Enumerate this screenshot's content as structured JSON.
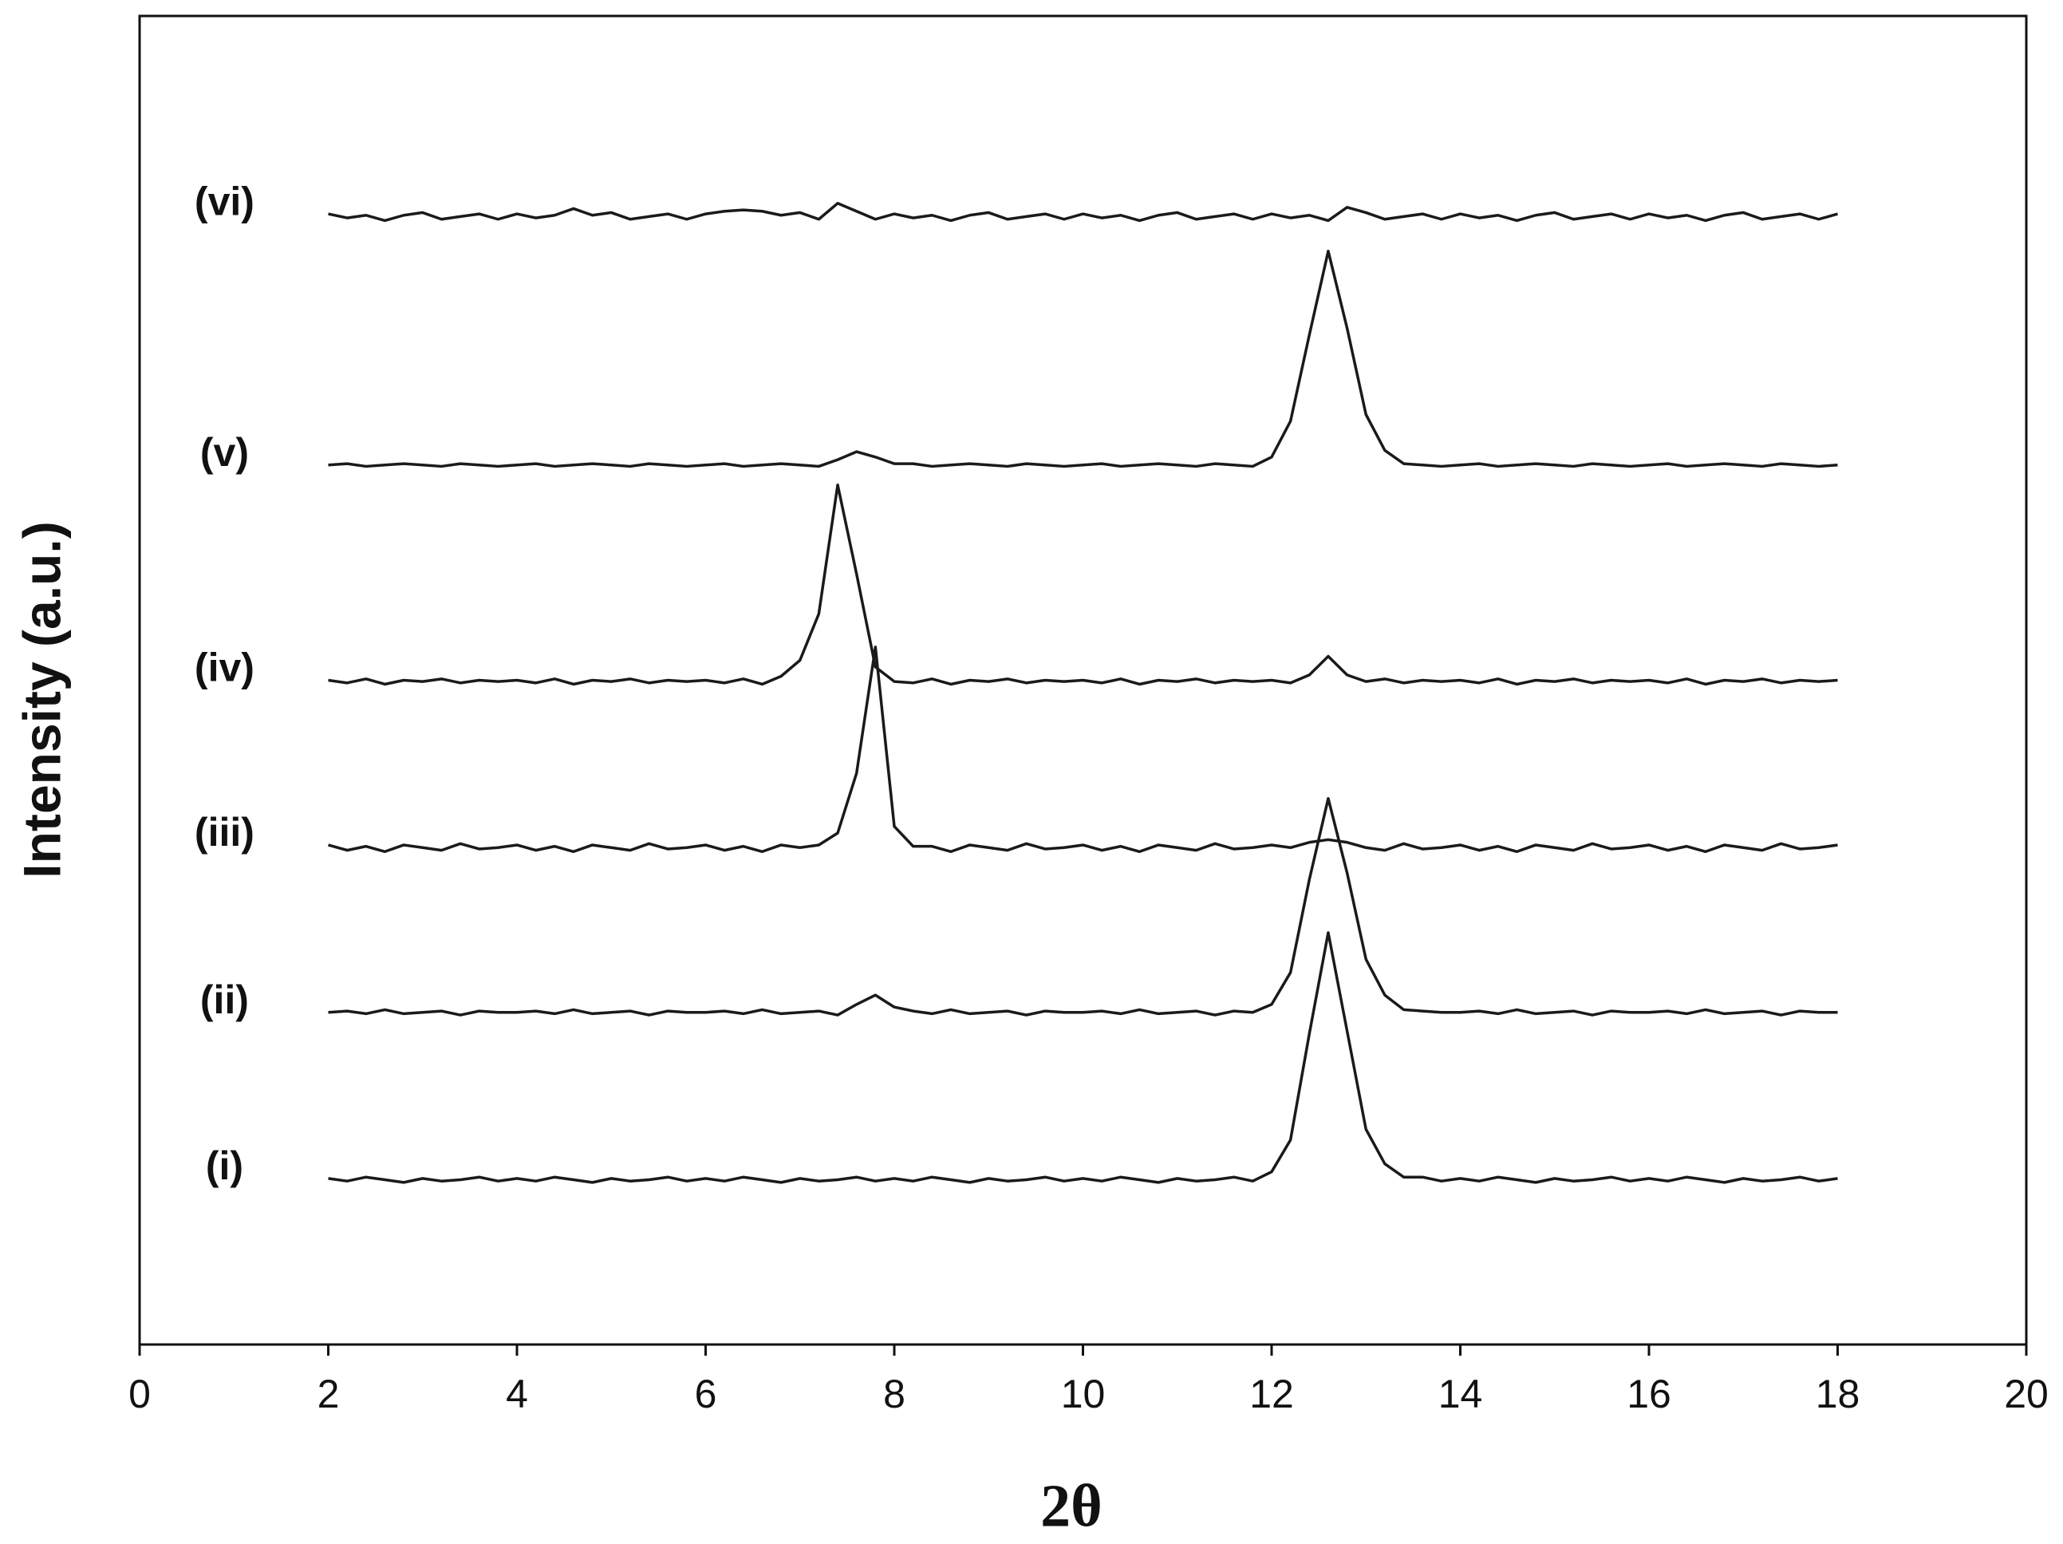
{
  "chart_data": {
    "type": "line",
    "x_label": "2θ",
    "y_label": "Intensity (a.u.)",
    "xlim": [
      0,
      20
    ],
    "xticks": [
      0,
      2,
      4,
      6,
      8,
      10,
      12,
      14,
      16,
      18,
      20
    ],
    "ylim": [
      0,
      100
    ],
    "grid": false,
    "x": [
      2,
      2.2,
      2.4,
      2.6,
      2.8,
      3,
      3.2,
      3.4,
      3.6,
      3.8,
      4,
      4.2,
      4.4,
      4.6,
      4.8,
      5,
      5.2,
      5.4,
      5.6,
      5.8,
      6,
      6.2,
      6.4,
      6.6,
      6.8,
      7,
      7.2,
      7.4,
      7.6,
      7.8,
      8,
      8.2,
      8.4,
      8.6,
      8.8,
      9,
      9.2,
      9.4,
      9.6,
      9.8,
      10,
      10.2,
      10.4,
      10.6,
      10.8,
      11,
      11.2,
      11.4,
      11.6,
      11.8,
      12,
      12.2,
      12.4,
      12.6,
      12.8,
      13,
      13.2,
      13.4,
      13.6,
      13.8,
      14,
      14.2,
      14.4,
      14.6,
      14.8,
      15,
      15.2,
      15.4,
      15.6,
      15.8,
      16,
      16.2,
      16.4,
      16.6,
      16.8,
      17,
      17.2,
      17.4,
      17.6,
      17.8,
      18
    ],
    "series": [
      {
        "name": "(i)",
        "color": "#1a1a1a",
        "values": [
          12.5,
          12.3,
          12.6,
          12.4,
          12.2,
          12.5,
          12.3,
          12.4,
          12.6,
          12.3,
          12.5,
          12.3,
          12.6,
          12.4,
          12.2,
          12.5,
          12.3,
          12.4,
          12.6,
          12.3,
          12.5,
          12.3,
          12.6,
          12.4,
          12.2,
          12.5,
          12.3,
          12.4,
          12.6,
          12.3,
          12.5,
          12.3,
          12.6,
          12.4,
          12.2,
          12.5,
          12.3,
          12.4,
          12.6,
          12.3,
          12.5,
          12.3,
          12.6,
          12.4,
          12.2,
          12.5,
          12.3,
          12.4,
          12.6,
          12.3,
          13.0,
          15.4,
          23.4,
          31.0,
          23.6,
          16.2,
          13.6,
          12.6,
          12.6,
          12.3,
          12.5,
          12.3,
          12.6,
          12.4,
          12.2,
          12.5,
          12.3,
          12.4,
          12.6,
          12.3,
          12.5,
          12.3,
          12.6,
          12.4,
          12.2,
          12.5,
          12.3,
          12.4,
          12.6,
          12.3,
          12.5
        ]
      },
      {
        "name": "(ii)",
        "color": "#1a1a1a",
        "values": [
          25.0,
          25.1,
          24.9,
          25.2,
          24.9,
          25.0,
          25.1,
          24.8,
          25.1,
          25.0,
          25.0,
          25.1,
          24.9,
          25.2,
          24.9,
          25.0,
          25.1,
          24.8,
          25.1,
          25.0,
          25.0,
          25.1,
          24.9,
          25.2,
          24.9,
          25.0,
          25.1,
          24.8,
          25.6,
          26.3,
          25.4,
          25.1,
          24.9,
          25.2,
          24.9,
          25.0,
          25.1,
          24.8,
          25.1,
          25.0,
          25.0,
          25.1,
          24.9,
          25.2,
          24.9,
          25.0,
          25.1,
          24.8,
          25.1,
          25.0,
          25.6,
          28.0,
          35.0,
          41.1,
          35.5,
          29.0,
          26.3,
          25.2,
          25.1,
          25.0,
          25.0,
          25.1,
          24.9,
          25.2,
          24.9,
          25.0,
          25.1,
          24.8,
          25.1,
          25.0,
          25.0,
          25.1,
          24.9,
          25.2,
          24.9,
          25.0,
          25.1,
          24.8,
          25.1,
          25.0,
          25.0
        ]
      },
      {
        "name": "(iii)",
        "color": "#1a1a1a",
        "values": [
          37.6,
          37.2,
          37.5,
          37.1,
          37.6,
          37.4,
          37.2,
          37.7,
          37.3,
          37.4,
          37.6,
          37.2,
          37.5,
          37.1,
          37.6,
          37.4,
          37.2,
          37.7,
          37.3,
          37.4,
          37.6,
          37.2,
          37.5,
          37.1,
          37.6,
          37.4,
          37.6,
          38.5,
          43.0,
          52.5,
          39.0,
          37.5,
          37.5,
          37.1,
          37.6,
          37.4,
          37.2,
          37.7,
          37.3,
          37.4,
          37.6,
          37.2,
          37.5,
          37.1,
          37.6,
          37.4,
          37.2,
          37.7,
          37.3,
          37.4,
          37.6,
          37.4,
          37.8,
          38.0,
          37.8,
          37.4,
          37.2,
          37.7,
          37.3,
          37.4,
          37.6,
          37.2,
          37.5,
          37.1,
          37.6,
          37.4,
          37.2,
          37.7,
          37.3,
          37.4,
          37.6,
          37.2,
          37.5,
          37.1,
          37.6,
          37.4,
          37.2,
          37.7,
          37.3,
          37.4,
          37.6
        ]
      },
      {
        "name": "(iv)",
        "color": "#1a1a1a",
        "values": [
          50.0,
          49.8,
          50.1,
          49.7,
          50.0,
          49.9,
          50.1,
          49.8,
          50.0,
          49.9,
          50.0,
          49.8,
          50.1,
          49.7,
          50.0,
          49.9,
          50.1,
          49.8,
          50.0,
          49.9,
          50.0,
          49.8,
          50.1,
          49.7,
          50.3,
          51.5,
          55.0,
          64.7,
          58.0,
          51.0,
          49.9,
          49.8,
          50.1,
          49.7,
          50.0,
          49.9,
          50.1,
          49.8,
          50.0,
          49.9,
          50.0,
          49.8,
          50.1,
          49.7,
          50.0,
          49.9,
          50.1,
          49.8,
          50.0,
          49.9,
          50.0,
          49.8,
          50.4,
          51.8,
          50.4,
          49.9,
          50.1,
          49.8,
          50.0,
          49.9,
          50.0,
          49.8,
          50.1,
          49.7,
          50.0,
          49.9,
          50.1,
          49.8,
          50.0,
          49.9,
          50.0,
          49.8,
          50.1,
          49.7,
          50.0,
          49.9,
          50.1,
          49.8,
          50.0,
          49.9,
          50.0
        ]
      },
      {
        "name": "(v)",
        "color": "#1a1a1a",
        "values": [
          66.2,
          66.3,
          66.1,
          66.2,
          66.3,
          66.2,
          66.1,
          66.3,
          66.2,
          66.1,
          66.2,
          66.3,
          66.1,
          66.2,
          66.3,
          66.2,
          66.1,
          66.3,
          66.2,
          66.1,
          66.2,
          66.3,
          66.1,
          66.2,
          66.3,
          66.2,
          66.1,
          66.6,
          67.2,
          66.8,
          66.3,
          66.3,
          66.1,
          66.2,
          66.3,
          66.2,
          66.1,
          66.3,
          66.2,
          66.1,
          66.2,
          66.3,
          66.1,
          66.2,
          66.3,
          66.2,
          66.1,
          66.3,
          66.2,
          66.1,
          66.8,
          69.5,
          76.0,
          82.3,
          76.5,
          70.0,
          67.3,
          66.3,
          66.2,
          66.1,
          66.2,
          66.3,
          66.1,
          66.2,
          66.3,
          66.2,
          66.1,
          66.3,
          66.2,
          66.1,
          66.2,
          66.3,
          66.1,
          66.2,
          66.3,
          66.2,
          66.1,
          66.3,
          66.2,
          66.1,
          66.2
        ]
      },
      {
        "name": "(vi)",
        "color": "#1a1a1a",
        "values": [
          85.1,
          84.8,
          85.0,
          84.6,
          85.0,
          85.2,
          84.7,
          84.9,
          85.1,
          84.7,
          85.1,
          84.8,
          85.0,
          85.5,
          85.0,
          85.2,
          84.7,
          84.9,
          85.1,
          84.7,
          85.1,
          85.3,
          85.4,
          85.3,
          85.0,
          85.2,
          84.7,
          85.9,
          85.3,
          84.7,
          85.1,
          84.8,
          85.0,
          84.6,
          85.0,
          85.2,
          84.7,
          84.9,
          85.1,
          84.7,
          85.1,
          84.8,
          85.0,
          84.6,
          85.0,
          85.2,
          84.7,
          84.9,
          85.1,
          84.7,
          85.1,
          84.8,
          85.0,
          84.6,
          85.6,
          85.2,
          84.7,
          84.9,
          85.1,
          84.7,
          85.1,
          84.8,
          85.0,
          84.6,
          85.0,
          85.2,
          84.7,
          84.9,
          85.1,
          84.7,
          85.1,
          84.8,
          85.0,
          84.6,
          85.0,
          85.2,
          84.7,
          84.9,
          85.1,
          84.7,
          85.1
        ]
      }
    ]
  }
}
